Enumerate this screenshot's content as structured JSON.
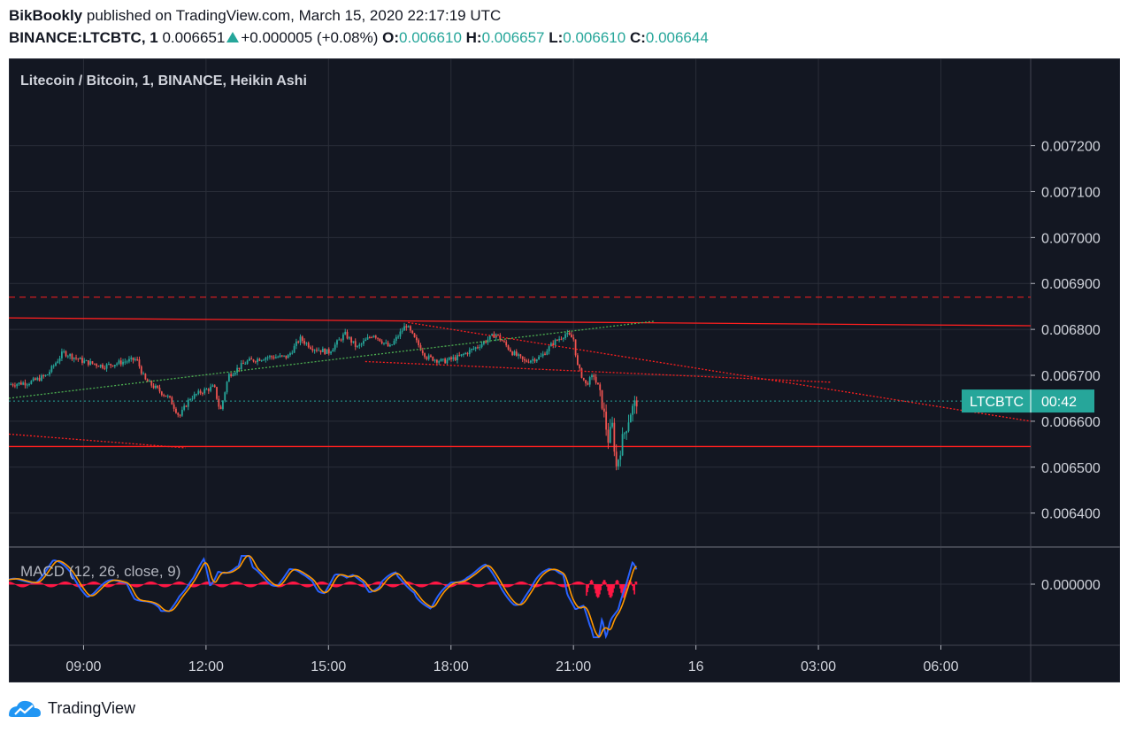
{
  "header": {
    "author": "BikBookly",
    "published_text": "published on TradingView.com, March 15, 2020 22:17:19 UTC",
    "symbol": "BINANCE:LTCBTC, 1",
    "last": "0.006651",
    "change": "+0.000005 (+0.08%)",
    "o_label": "O:",
    "o_value": "0.006610",
    "h_label": "H:",
    "h_value": "0.006657",
    "l_label": "L:",
    "l_value": "0.006610",
    "c_label": "C:",
    "c_value": "0.006644"
  },
  "chart_title": "Litecoin / Bitcoin, 1, BINANCE, Heikin Ashi",
  "macd_label": "MACD (12, 26, close, 9)",
  "price_badge": {
    "symbol": "LTCBTC",
    "countdown": "00:42",
    "value": 0.006644,
    "color": "#26a69a"
  },
  "footer": {
    "brand": "TradingView"
  },
  "colors": {
    "background": "#131722",
    "grid": "#2a2e39",
    "up": "#26a69a",
    "down": "#ef5350",
    "trendline": "#ff1f1f",
    "green_dotted": "#4caf50",
    "macd_line": "#2962ff",
    "signal_line": "#ff9800",
    "hist_neg": "#ff1744"
  },
  "chart_data": {
    "type": "candlestick",
    "title": "Litecoin / Bitcoin, 1, BINANCE, Heikin Ashi",
    "y_ticks": [
      "0.007200",
      "0.007100",
      "0.007000",
      "0.006900",
      "0.006800",
      "0.006700",
      "0.006600",
      "0.006500",
      "0.006400"
    ],
    "y_range": [
      0.00633,
      0.00739
    ],
    "x_ticks": [
      "09:00",
      "12:00",
      "15:00",
      "18:00",
      "21:00",
      "16",
      "03:00",
      "06:00"
    ],
    "x_range_hours": [
      7.17,
      32.2
    ],
    "macd_ticks": [
      "0.000000"
    ],
    "price_path": [
      [
        7.17,
        0.00668
      ],
      [
        7.7,
        0.006685
      ],
      [
        8.1,
        0.0067
      ],
      [
        8.5,
        0.00675
      ],
      [
        9.0,
        0.00673
      ],
      [
        9.5,
        0.00672
      ],
      [
        10.0,
        0.00673
      ],
      [
        10.3,
        0.006735
      ],
      [
        10.5,
        0.00669
      ],
      [
        10.8,
        0.00667
      ],
      [
        11.1,
        0.00665
      ],
      [
        11.35,
        0.00661
      ],
      [
        11.6,
        0.00665
      ],
      [
        11.9,
        0.006665
      ],
      [
        12.2,
        0.006675
      ],
      [
        12.35,
        0.00662
      ],
      [
        12.55,
        0.0067
      ],
      [
        13.0,
        0.00673
      ],
      [
        13.5,
        0.00674
      ],
      [
        14.0,
        0.00674
      ],
      [
        14.3,
        0.00678
      ],
      [
        14.6,
        0.00676
      ],
      [
        15.0,
        0.00675
      ],
      [
        15.4,
        0.00679
      ],
      [
        15.7,
        0.00676
      ],
      [
        16.1,
        0.00679
      ],
      [
        16.5,
        0.00676
      ],
      [
        16.9,
        0.00681
      ],
      [
        17.1,
        0.00678
      ],
      [
        17.4,
        0.00674
      ],
      [
        17.8,
        0.00673
      ],
      [
        18.2,
        0.00674
      ],
      [
        18.6,
        0.00676
      ],
      [
        19.1,
        0.00679
      ],
      [
        19.5,
        0.00675
      ],
      [
        19.8,
        0.00673
      ],
      [
        20.2,
        0.00674
      ],
      [
        20.5,
        0.00677
      ],
      [
        20.8,
        0.00679
      ],
      [
        21.0,
        0.00678
      ],
      [
        21.1,
        0.00672
      ],
      [
        21.3,
        0.00668
      ],
      [
        21.5,
        0.0067
      ],
      [
        21.7,
        0.00664
      ],
      [
        21.85,
        0.00656
      ],
      [
        21.95,
        0.00659
      ],
      [
        22.05,
        0.0065
      ],
      [
        22.2,
        0.00656
      ],
      [
        22.4,
        0.00662
      ],
      [
        22.55,
        0.006644
      ]
    ],
    "levels": [
      {
        "name": "resistance-dashed",
        "style": "dashed",
        "y": 0.00687
      },
      {
        "name": "support",
        "style": "solid",
        "y": 0.006545
      },
      {
        "name": "last-price",
        "style": "dotted",
        "y": 0.006644
      }
    ],
    "trendlines": [
      {
        "name": "upper",
        "style": "solid",
        "x1": 7.17,
        "y1": 0.006825,
        "x2": 32.2,
        "y2": 0.006808
      },
      {
        "name": "rising",
        "style": "dotted",
        "x1": 7.17,
        "y1": 0.00665,
        "x2": 23.0,
        "y2": 0.006818
      },
      {
        "name": "falling",
        "style": "dotted",
        "x1": 16.95,
        "y1": 0.006815,
        "x2": 32.2,
        "y2": 0.0066
      },
      {
        "name": "mid",
        "style": "dotted",
        "x1": 15.9,
        "y1": 0.00673,
        "x2": 27.3,
        "y2": 0.006685
      },
      {
        "name": "lower",
        "style": "dotted",
        "x1": 7.17,
        "y1": 0.006572,
        "x2": 11.5,
        "y2": 0.006542
      }
    ]
  }
}
